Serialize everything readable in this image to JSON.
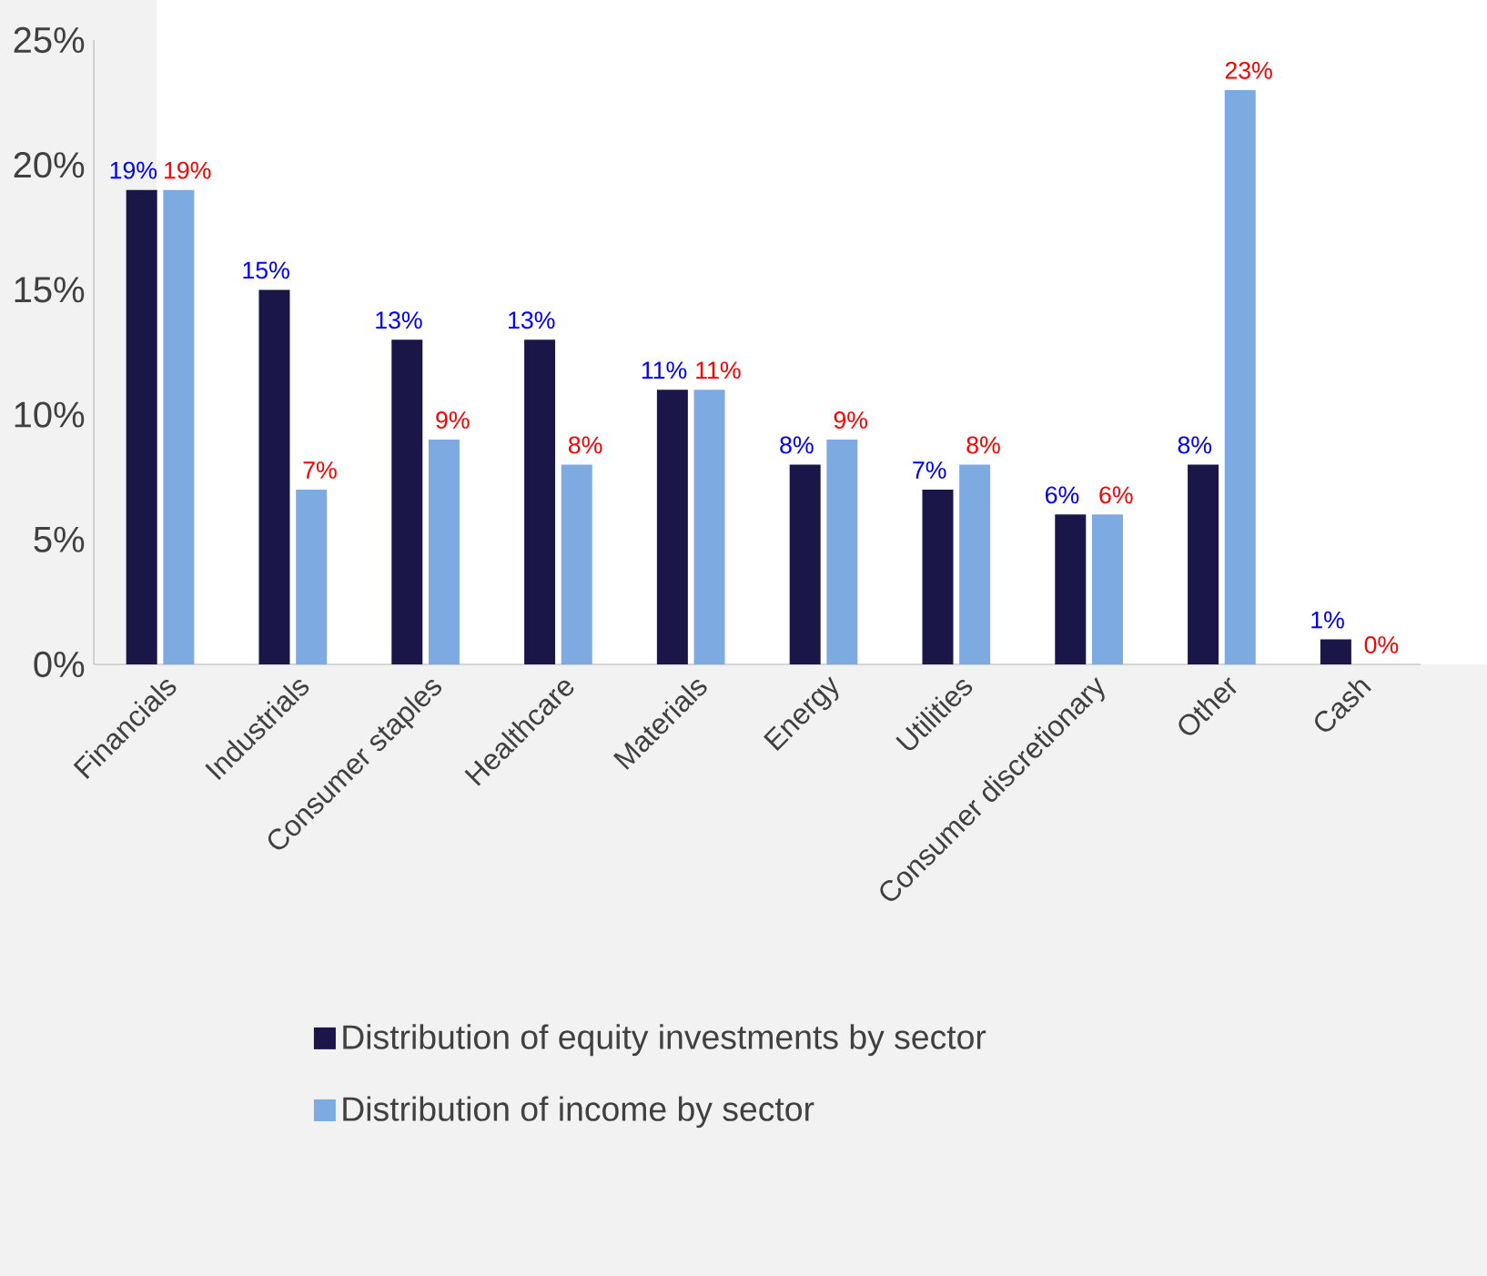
{
  "chart_data": {
    "type": "bar",
    "categories": [
      "Financials",
      "Industrials",
      "Consumer staples",
      "Healthcare",
      "Materials",
      "Energy",
      "Utilities",
      "Consumer discretionary",
      "Other",
      "Cash"
    ],
    "series": [
      {
        "name": "Distribution of equity investments by sector",
        "color": "#1a1648",
        "values": [
          19,
          15,
          13,
          13,
          11,
          8,
          7,
          6,
          8,
          1
        ],
        "value_labels": [
          "19%",
          "15%",
          "13%",
          "13%",
          "11%",
          "8%",
          "7%",
          "6%",
          "8%",
          "1%"
        ]
      },
      {
        "name": "Distribution of income by sector",
        "color": "#7eaae2",
        "values": [
          19,
          7,
          9,
          8,
          11,
          9,
          8,
          6,
          23,
          0
        ],
        "value_labels": [
          "19%",
          "7%",
          "9%",
          "8%",
          "11%",
          "9%",
          "8%",
          "6%",
          "23%",
          "0%"
        ]
      }
    ],
    "ylim": [
      0,
      25
    ],
    "yticks": [
      {
        "value": 0,
        "label": "0%"
      },
      {
        "value": 5,
        "label": "5%"
      },
      {
        "value": 10,
        "label": "10%"
      },
      {
        "value": 15,
        "label": "15%"
      },
      {
        "value": 20,
        "label": "20%"
      },
      {
        "value": 25,
        "label": "25%"
      }
    ],
    "grid": false,
    "legend": "bottom"
  }
}
